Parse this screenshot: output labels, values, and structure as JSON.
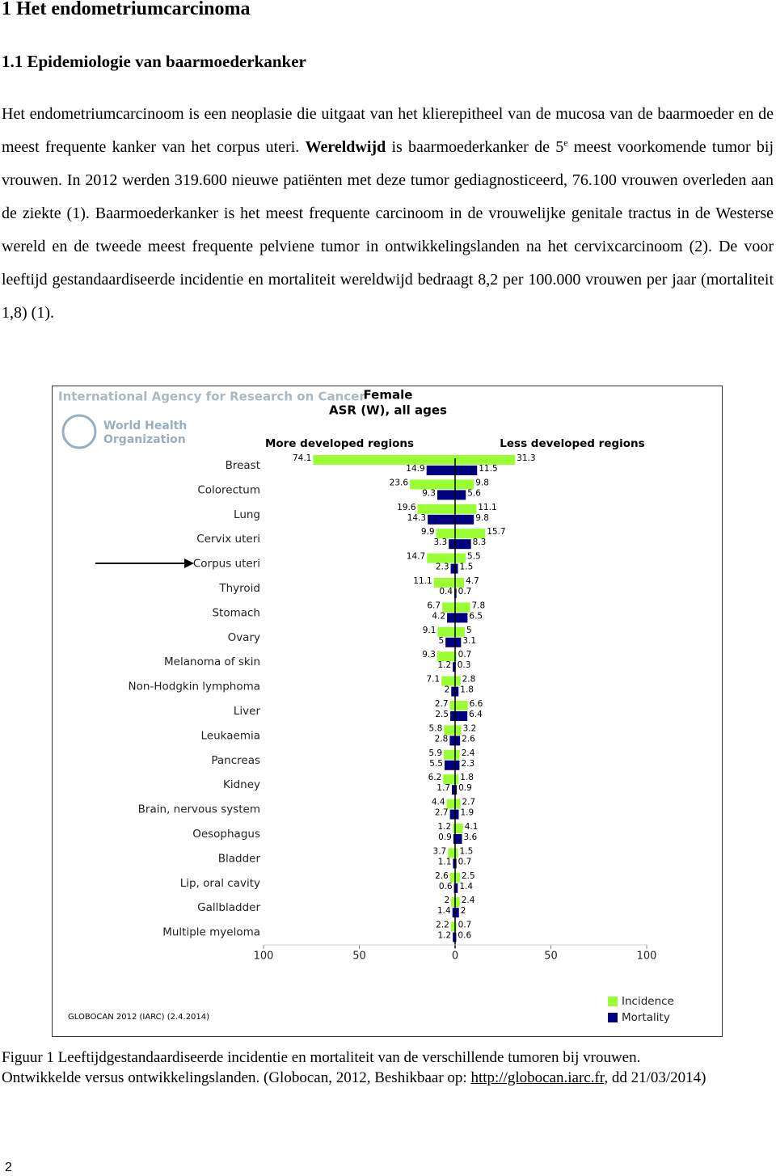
{
  "header": {
    "title": "1  Het endometriumcarcinoma",
    "subtitle": "1.1  Epidemiologie van baarmoederkanker"
  },
  "paragraph": {
    "text_1": "Het endometriumcarcinoom is een neoplasie die uitgaat van het klierepitheel van de mucosa van de baarmoeder en de meest frequente kanker van het corpus uteri.",
    "bold": "Wereldwijd",
    "text_2": "is baarmoederkanker de 5",
    "superscript": "e",
    "text_3": "meest voorkomende tumor bij vrouwen. In 2012 werden 319.600 nieuwe patiënten met deze tumor gediagnosticeerd, 76.100 vrouwen overleden aan de ziekte (1). Baarmoederkanker  is het meest frequente carcinoom in de vrouwelijke genitale tractus in de Westerse wereld en de tweede meest frequente pelviene tumor in ontwikkelingslanden na het cervixcarcinoom (2). De voor leeftijd gestandaardiseerde incidentie en mortaliteit wereldwijd bedraagt 8,2 per 100.000 vrouwen per jaar (mortaliteit 1,8)  (1)."
  },
  "chart_data": {
    "type": "bar",
    "orientation": "horizontal",
    "source_header": "International Agency for Research on Cancer",
    "logo_text": [
      "World Health",
      "Organization"
    ],
    "title": "Female",
    "subtitle": "ASR (W), all ages",
    "footer": "GLOBOCAN 2012 (IARC) (2.4.2014)",
    "categories": [
      "Breast",
      "Colorectum",
      "Lung",
      "Cervix uteri",
      "Corpus uteri",
      "Thyroid",
      "Stomach",
      "Ovary",
      "Melanoma of skin",
      "Non-Hodgkin lymphoma",
      "Liver",
      "Leukaemia",
      "Pancreas",
      "Kidney",
      "Brain, nervous system",
      "Oesophagus",
      "Bladder",
      "Lip, oral cavity",
      "Gallbladder",
      "Multiple myeloma"
    ],
    "series": [
      {
        "name": "Incidence",
        "color": "#99ff33"
      },
      {
        "name": "Mortality",
        "color": "#000080"
      }
    ],
    "regions": [
      {
        "name": "More developed regions",
        "xlim": [
          100,
          0
        ],
        "xticks": [
          100,
          50
        ],
        "incidence": [
          74.1,
          23.6,
          19.6,
          9.9,
          14.7,
          11.1,
          6.7,
          9.1,
          9.3,
          7.1,
          2.7,
          5.8,
          5.9,
          6.2,
          4.4,
          1.2,
          3.7,
          2.6,
          2,
          2.2
        ],
        "mortality": [
          14.9,
          9.3,
          14.3,
          3.3,
          2.3,
          0.4,
          4.2,
          5,
          1.2,
          2,
          2.5,
          2.8,
          5.5,
          1.7,
          2.7,
          0.9,
          1.1,
          0.6,
          1.4,
          1.2
        ]
      },
      {
        "name": "Less developed regions",
        "xlim": [
          0,
          100
        ],
        "xticks": [
          0,
          50,
          100
        ],
        "incidence": [
          31.3,
          9.8,
          11.1,
          15.7,
          5.5,
          4.7,
          7.8,
          5,
          0.7,
          2.8,
          6.6,
          3.2,
          2.4,
          1.8,
          2.7,
          4.1,
          1.5,
          2.5,
          2.4,
          0.7
        ],
        "mortality": [
          11.5,
          5.6,
          9.8,
          8.3,
          1.5,
          0.7,
          6.5,
          3.1,
          0.3,
          1.8,
          6.4,
          2.6,
          2.3,
          0.9,
          1.9,
          3.6,
          0.7,
          1.4,
          2,
          0.6
        ]
      }
    ]
  },
  "caption": {
    "line_1": "Figuur 1 Leeftijdgestandaardiseerde  incidentie en mortaliteit van de verschillende tumoren bij vrouwen.",
    "line_2": "Ontwikkelde versus ontwikkelingslanden. (Globocan, 2012, Beshikbaar op:",
    "link": "http://globocan.iarc.fr",
    "line_3": ", dd 21/03/2014)"
  },
  "page_number": "2"
}
